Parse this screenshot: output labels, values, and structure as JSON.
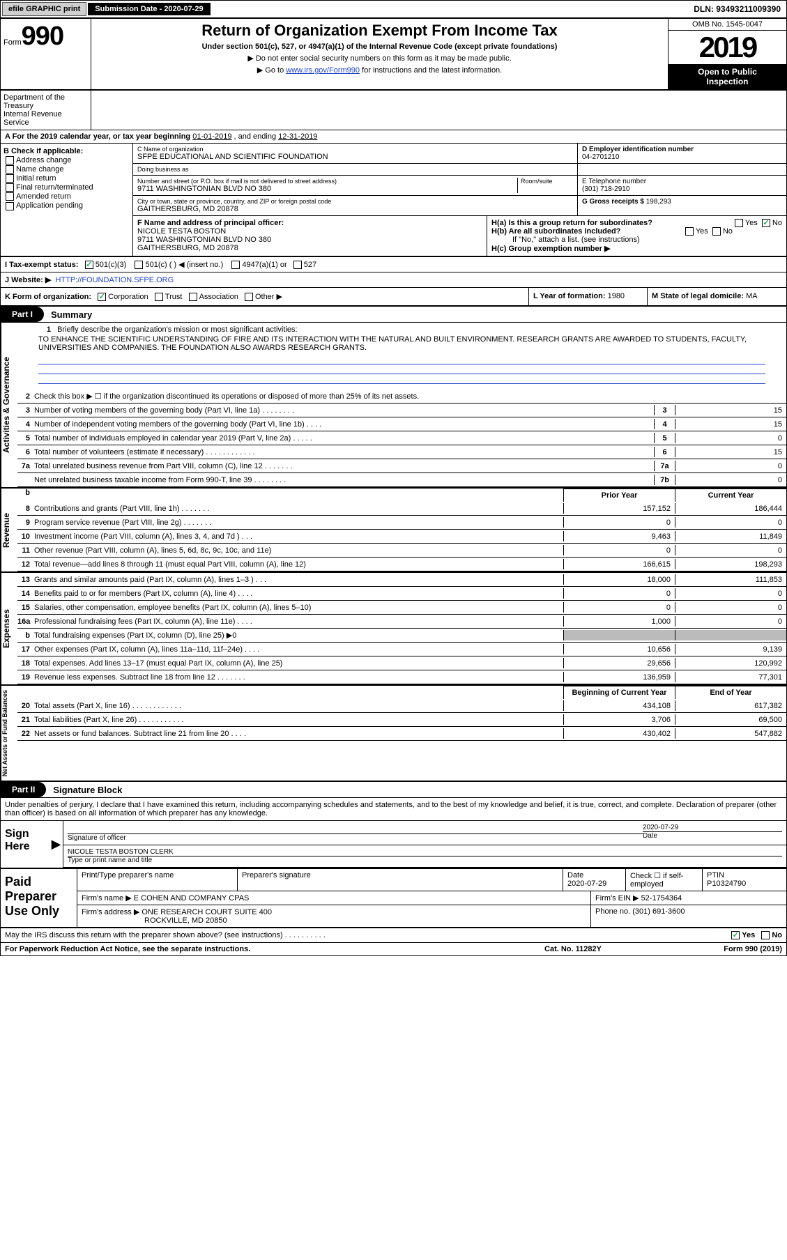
{
  "topbar": {
    "efile": "efile GRAPHIC print",
    "submission": "Submission Date - 2020-07-29",
    "dln": "DLN: 93493211009390"
  },
  "header": {
    "form_label": "Form",
    "form_num": "990",
    "title": "Return of Organization Exempt From Income Tax",
    "subtitle": "Under section 501(c), 527, or 4947(a)(1) of the Internal Revenue Code (except private foundations)",
    "instr1": "▶ Do not enter social security numbers on this form as it may be made public.",
    "instr2_pre": "▶ Go to ",
    "instr2_link": "www.irs.gov/Form990",
    "instr2_post": " for instructions and the latest information.",
    "omb": "OMB No. 1545-0047",
    "year": "2019",
    "open_pub1": "Open to Public",
    "open_pub2": "Inspection",
    "dept1": "Department of the Treasury",
    "dept2": "Internal Revenue Service"
  },
  "period": {
    "label_a": "A For the 2019 calendar year, or tax year beginning ",
    "begin": "01-01-2019",
    "mid": " , and ending ",
    "end": "12-31-2019"
  },
  "box_b": {
    "hdr": "B Check if applicable:",
    "items": [
      "Address change",
      "Name change",
      "Initial return",
      "Final return/terminated",
      "Amended return",
      "Application pending"
    ]
  },
  "box_c": {
    "name_lbl": "C Name of organization",
    "name": "SFPE EDUCATIONAL AND SCIENTIFIC FOUNDATION",
    "dba_lbl": "Doing business as",
    "addr_lbl": "Number and street (or P.O. box if mail is not delivered to street address)",
    "room_lbl": "Room/suite",
    "addr": "9711 WASHINGTONIAN BLVD NO 380",
    "city_lbl": "City or town, state or province, country, and ZIP or foreign postal code",
    "city": "GAITHERSBURG, MD  20878"
  },
  "box_d": {
    "lbl": "D Employer identification number",
    "val": "04-2701210"
  },
  "box_e": {
    "lbl": "E Telephone number",
    "val": "(301) 718-2910"
  },
  "box_g": {
    "lbl": "G Gross receipts $",
    "val": "198,293"
  },
  "box_f": {
    "lbl": "F  Name and address of principal officer:",
    "name": "NICOLE TESTA BOSTON",
    "addr1": "9711 WASHINGTONIAN BLVD NO 380",
    "addr2": "GAITHERSBURG, MD  20878"
  },
  "box_h": {
    "a_lbl": "H(a)  Is this a group return for subordinates?",
    "a_yes": "Yes",
    "a_no": "No",
    "b_lbl": "H(b)  Are all subordinates included?",
    "b_yes": "Yes",
    "b_no": "No",
    "b_note": "If \"No,\" attach a list. (see instructions)",
    "c_lbl": "H(c)  Group exemption number ▶"
  },
  "box_i": {
    "lbl": "I  Tax-exempt status:",
    "opt1": "501(c)(3)",
    "opt2": "501(c) (   ) ◀ (insert no.)",
    "opt3": "4947(a)(1) or",
    "opt4": "527"
  },
  "box_j": {
    "lbl": "J  Website: ▶",
    "val": "HTTP://FOUNDATION.SFPE.ORG"
  },
  "box_k": {
    "lbl": "K Form of organization:",
    "opts": [
      "Corporation",
      "Trust",
      "Association",
      "Other ▶"
    ]
  },
  "box_l": {
    "lbl": "L Year of formation:",
    "val": "1980"
  },
  "box_m": {
    "lbl": "M State of legal domicile:",
    "val": "MA"
  },
  "part1": {
    "tag": "Part I",
    "title": "Summary"
  },
  "mission": {
    "num": "1",
    "q": "Briefly describe the organization's mission or most significant activities:",
    "ans": "TO ENHANCE THE SCIENTIFIC UNDERSTANDING OF FIRE AND ITS INTERACTION WITH THE NATURAL AND BUILT ENVIRONMENT. RESEARCH GRANTS ARE AWARDED TO STUDENTS, FACULTY, UNIVERSITIES AND COMPANIES. THE FOUNDATION ALSO AWARDS RESEARCH GRANTS."
  },
  "gov_section": "Activities & Governance",
  "rev_section": "Revenue",
  "exp_section": "Expenses",
  "net_section": "Net Assets or Fund Balances",
  "lines_gov": [
    {
      "n": "2",
      "t": "Check this box ▶ ☐  if the organization discontinued its operations or disposed of more than 25% of its net assets.",
      "box": "",
      "v": ""
    },
    {
      "n": "3",
      "t": "Number of voting members of the governing body (Part VI, line 1a)   .    .    .    .    .    .    .    .",
      "box": "3",
      "v": "15"
    },
    {
      "n": "4",
      "t": "Number of independent voting members of the governing body (Part VI, line 1b)    .    .    .    .",
      "box": "4",
      "v": "15"
    },
    {
      "n": "5",
      "t": "Total number of individuals employed in calendar year 2019 (Part V, line 2a)    .    .    .    .    .",
      "box": "5",
      "v": "0"
    },
    {
      "n": "6",
      "t": "Total number of volunteers (estimate if necessary)    .    .    .    .    .    .    .    .    .    .    .    .",
      "box": "6",
      "v": "15"
    },
    {
      "n": "7a",
      "t": "Total unrelated business revenue from Part VIII, column (C), line 12    .    .    .    .    .    .    .",
      "box": "7a",
      "v": "0"
    },
    {
      "n": "",
      "t": "Net unrelated business taxable income from Form 990-T, line 39    .    .    .    .    .    .    .    .",
      "box": "7b",
      "v": "0"
    }
  ],
  "col_heads": {
    "prior": "Prior Year",
    "current": "Current Year"
  },
  "lines_rev": [
    {
      "n": "8",
      "t": "Contributions and grants (Part VIII, line 1h)    .    .    .    .    .    .    .",
      "p": "157,152",
      "c": "186,444"
    },
    {
      "n": "9",
      "t": "Program service revenue (Part VIII, line 2g)    .    .    .    .    .    .    .",
      "p": "0",
      "c": "0"
    },
    {
      "n": "10",
      "t": "Investment income (Part VIII, column (A), lines 3, 4, and 7d )    .    .    .",
      "p": "9,463",
      "c": "11,849"
    },
    {
      "n": "11",
      "t": "Other revenue (Part VIII, column (A), lines 5, 6d, 8c, 9c, 10c, and 11e)",
      "p": "0",
      "c": "0"
    },
    {
      "n": "12",
      "t": "Total revenue—add lines 8 through 11 (must equal Part VIII, column (A), line 12)",
      "p": "166,615",
      "c": "198,293"
    }
  ],
  "lines_exp": [
    {
      "n": "13",
      "t": "Grants and similar amounts paid (Part IX, column (A), lines 1–3 )    .    .    .",
      "p": "18,000",
      "c": "111,853"
    },
    {
      "n": "14",
      "t": "Benefits paid to or for members (Part IX, column (A), line 4)    .    .    .    .",
      "p": "0",
      "c": "0"
    },
    {
      "n": "15",
      "t": "Salaries, other compensation, employee benefits (Part IX, column (A), lines 5–10)",
      "p": "0",
      "c": "0"
    },
    {
      "n": "16a",
      "t": "Professional fundraising fees (Part IX, column (A), line 11e)    .    .    .    .",
      "p": "1,000",
      "c": "0"
    },
    {
      "n": "b",
      "t": "Total fundraising expenses (Part IX, column (D), line 25) ▶0",
      "p": "",
      "c": "",
      "shaded": true
    },
    {
      "n": "17",
      "t": "Other expenses (Part IX, column (A), lines 11a–11d, 11f–24e)    .    .    .    .",
      "p": "10,656",
      "c": "9,139"
    },
    {
      "n": "18",
      "t": "Total expenses. Add lines 13–17 (must equal Part IX, column (A), line 25)",
      "p": "29,656",
      "c": "120,992"
    },
    {
      "n": "19",
      "t": "Revenue less expenses. Subtract line 18 from line 12    .    .    .    .    .    .    .",
      "p": "136,959",
      "c": "77,301"
    }
  ],
  "net_heads": {
    "begin": "Beginning of Current Year",
    "end": "End of Year"
  },
  "lines_net": [
    {
      "n": "20",
      "t": "Total assets (Part X, line 16)    .    .    .    .    .    .    .    .    .    .    .    .",
      "p": "434,108",
      "c": "617,382"
    },
    {
      "n": "21",
      "t": "Total liabilities (Part X, line 26)    .    .    .    .    .    .    .    .    .    .    .",
      "p": "3,706",
      "c": "69,500"
    },
    {
      "n": "22",
      "t": "Net assets or fund balances. Subtract line 21 from line 20    .    .    .    .",
      "p": "430,402",
      "c": "547,882"
    }
  ],
  "part2": {
    "tag": "Part II",
    "title": "Signature Block"
  },
  "sig": {
    "intro": "Under penalties of perjury, I declare that I have examined this return, including accompanying schedules and statements, and to the best of my knowledge and belief, it is true, correct, and complete. Declaration of preparer (other than officer) is based on all information of which preparer has any knowledge.",
    "sign_here": "Sign Here",
    "sig_officer": "Signature of officer",
    "date_lbl": "Date",
    "date": "2020-07-29",
    "name": "NICOLE TESTA BOSTON  CLERK",
    "name_lbl": "Type or print name and title"
  },
  "paid": {
    "label": "Paid Preparer Use Only",
    "r1": {
      "c1": "Print/Type preparer's name",
      "c2": "Preparer's signature",
      "c3_lbl": "Date",
      "c3": "2020-07-29",
      "c4": "Check ☐ if self-employed",
      "c5_lbl": "PTIN",
      "c5": "P10324790"
    },
    "r2": {
      "firm_lbl": "Firm's name      ▶",
      "firm": "E COHEN AND COMPANY CPAS",
      "ein_lbl": "Firm's EIN ▶",
      "ein": "52-1754364"
    },
    "r3": {
      "addr_lbl": "Firm's address ▶",
      "addr1": "ONE RESEARCH COURT SUITE 400",
      "addr2": "ROCKVILLE, MD  20850",
      "phone_lbl": "Phone no.",
      "phone": "(301) 691-3600"
    }
  },
  "discuss": {
    "q": "May the IRS discuss this return with the preparer shown above? (see instructions)    .    .    .    .    .    .    .    .    .    .",
    "yes": "Yes",
    "no": "No"
  },
  "footer": {
    "f1": "For Paperwork Reduction Act Notice, see the separate instructions.",
    "f2": "Cat. No. 11282Y",
    "f3": "Form 990 (2019)"
  }
}
